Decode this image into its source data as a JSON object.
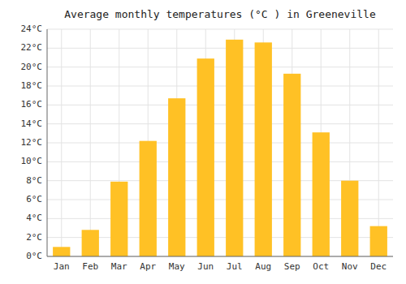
{
  "chart_data": {
    "type": "bar",
    "title": "Average monthly temperatures (°C ) in Greeneville",
    "categories": [
      "Jan",
      "Feb",
      "Mar",
      "Apr",
      "May",
      "Jun",
      "Jul",
      "Aug",
      "Sep",
      "Oct",
      "Nov",
      "Dec"
    ],
    "values": [
      1.0,
      2.8,
      7.9,
      12.2,
      16.7,
      20.9,
      22.9,
      22.6,
      19.3,
      13.1,
      8.0,
      3.2
    ],
    "color": "#FFC125",
    "ylim": [
      0,
      24
    ],
    "yticks": [
      {
        "value": 0,
        "label": "0°C"
      },
      {
        "value": 2,
        "label": "2°C"
      },
      {
        "value": 4,
        "label": "4°C"
      },
      {
        "value": 6,
        "label": "6°C"
      },
      {
        "value": 8,
        "label": "8°C"
      },
      {
        "value": 10,
        "label": "10°C"
      },
      {
        "value": 12,
        "label": "12°C"
      },
      {
        "value": 14,
        "label": "14°C"
      },
      {
        "value": 16,
        "label": "16°C"
      },
      {
        "value": 18,
        "label": "18°C"
      },
      {
        "value": 20,
        "label": "20°C"
      },
      {
        "value": 22,
        "label": "22°C"
      },
      {
        "value": 24,
        "label": "24°C"
      }
    ],
    "grid": true
  }
}
